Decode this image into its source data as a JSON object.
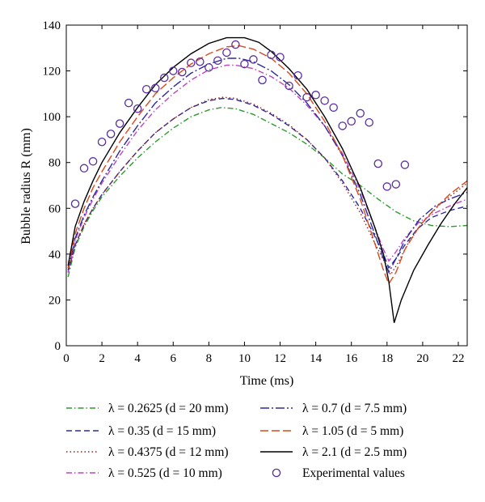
{
  "chart_data": {
    "type": "line",
    "xlabel": "Time (ms)",
    "ylabel": "Bubble radius R (mm)",
    "xlim": [
      0,
      22.5
    ],
    "ylim": [
      0,
      140
    ],
    "xticks": [
      0,
      2,
      4,
      6,
      8,
      10,
      12,
      14,
      16,
      18,
      20,
      22
    ],
    "yticks": [
      0,
      20,
      40,
      60,
      80,
      100,
      120,
      140
    ],
    "grid": false,
    "legend_position": "below",
    "series": [
      {
        "name": "λ = 0.2625 (d = 20 mm)",
        "color": "#2e9a2e",
        "dash": "dashdot",
        "points": [
          [
            0.1,
            30
          ],
          [
            0.5,
            43
          ],
          [
            1,
            52
          ],
          [
            1.5,
            59
          ],
          [
            2,
            65
          ],
          [
            3,
            74
          ],
          [
            4,
            82
          ],
          [
            5,
            89
          ],
          [
            6,
            95
          ],
          [
            7,
            100
          ],
          [
            8,
            103
          ],
          [
            8.7,
            104
          ],
          [
            9.5,
            103.5
          ],
          [
            10.5,
            101
          ],
          [
            11.5,
            97
          ],
          [
            12.5,
            93
          ],
          [
            13.5,
            88
          ],
          [
            14.5,
            82
          ],
          [
            15.5,
            75
          ],
          [
            16.5,
            70
          ],
          [
            17.5,
            64
          ],
          [
            18.5,
            58.5
          ],
          [
            19.5,
            54.5
          ],
          [
            20.5,
            52.5
          ],
          [
            21.5,
            52
          ],
          [
            22.5,
            52.5
          ]
        ]
      },
      {
        "name": "λ = 0.35 (d = 15 mm)",
        "color": "#2b2b9e",
        "dash": "dash",
        "points": [
          [
            0.1,
            32
          ],
          [
            0.5,
            44
          ],
          [
            1,
            53
          ],
          [
            1.5,
            60
          ],
          [
            2,
            66
          ],
          [
            3,
            76
          ],
          [
            4,
            85
          ],
          [
            5,
            93
          ],
          [
            6,
            99
          ],
          [
            7,
            104
          ],
          [
            8,
            107
          ],
          [
            8.8,
            108
          ],
          [
            9.5,
            107.5
          ],
          [
            10.5,
            105
          ],
          [
            11.5,
            101
          ],
          [
            12.5,
            96
          ],
          [
            13.5,
            90
          ],
          [
            14.5,
            82
          ],
          [
            15.5,
            72
          ],
          [
            16.5,
            60
          ],
          [
            17.3,
            48
          ],
          [
            17.8,
            40
          ],
          [
            18.1,
            34
          ],
          [
            18.5,
            38
          ],
          [
            19,
            44
          ],
          [
            19.7,
            51
          ],
          [
            20.5,
            56
          ],
          [
            21.5,
            59
          ],
          [
            22.5,
            61
          ]
        ]
      },
      {
        "name": "λ = 0.4375 (d = 12 mm)",
        "color": "#9a2222",
        "dash": "dot",
        "points": [
          [
            0.1,
            32
          ],
          [
            0.5,
            44
          ],
          [
            1,
            53
          ],
          [
            1.5,
            60
          ],
          [
            2,
            66
          ],
          [
            3,
            76
          ],
          [
            4,
            85
          ],
          [
            5,
            93
          ],
          [
            6,
            99
          ],
          [
            7,
            104
          ],
          [
            8,
            107.5
          ],
          [
            8.8,
            108.5
          ],
          [
            9.5,
            108
          ],
          [
            10.5,
            105.5
          ],
          [
            11.5,
            101.5
          ],
          [
            12.5,
            96.5
          ],
          [
            13.5,
            90
          ],
          [
            14.5,
            82
          ],
          [
            15.5,
            71
          ],
          [
            16.5,
            58
          ],
          [
            17.3,
            45
          ],
          [
            17.9,
            36
          ],
          [
            18.2,
            31
          ],
          [
            18.6,
            36
          ],
          [
            19.2,
            45
          ],
          [
            20,
            54
          ],
          [
            21,
            62
          ],
          [
            22,
            68
          ],
          [
            22.5,
            71
          ]
        ]
      },
      {
        "name": "λ = 0.525 (d = 10 mm)",
        "color": "#c044c0",
        "dash": "dashdot",
        "points": [
          [
            0.1,
            32
          ],
          [
            0.5,
            46
          ],
          [
            1,
            56
          ],
          [
            1.5,
            64
          ],
          [
            2,
            71
          ],
          [
            3,
            83
          ],
          [
            4,
            94
          ],
          [
            5,
            103
          ],
          [
            6,
            110
          ],
          [
            7,
            116
          ],
          [
            8,
            120.5
          ],
          [
            9,
            122.5
          ],
          [
            9.5,
            122.5
          ],
          [
            10.5,
            121
          ],
          [
            11.5,
            117.5
          ],
          [
            12.5,
            112.5
          ],
          [
            13.5,
            105
          ],
          [
            14.5,
            96
          ],
          [
            15.5,
            84
          ],
          [
            16.5,
            68
          ],
          [
            17.3,
            52
          ],
          [
            17.8,
            42
          ],
          [
            18.1,
            37
          ],
          [
            18.5,
            41
          ],
          [
            19,
            47
          ],
          [
            19.8,
            54
          ],
          [
            20.7,
            58
          ],
          [
            21.5,
            61
          ],
          [
            22.5,
            64
          ]
        ]
      },
      {
        "name": "λ = 0.7 (d = 7.5 mm)",
        "color": "#2b2b9e",
        "dash": "longdashdot",
        "points": [
          [
            0.1,
            33
          ],
          [
            0.5,
            47
          ],
          [
            1,
            57
          ],
          [
            1.5,
            65
          ],
          [
            2,
            72
          ],
          [
            3,
            85
          ],
          [
            4,
            96
          ],
          [
            5,
            106
          ],
          [
            6,
            113
          ],
          [
            7,
            119
          ],
          [
            8,
            123
          ],
          [
            9,
            125.5
          ],
          [
            9.7,
            125.5
          ],
          [
            10.5,
            124
          ],
          [
            11.5,
            120
          ],
          [
            12.5,
            114
          ],
          [
            13.5,
            106
          ],
          [
            14.5,
            96
          ],
          [
            15.5,
            83
          ],
          [
            16.5,
            66
          ],
          [
            17.3,
            49
          ],
          [
            17.8,
            38
          ],
          [
            18.1,
            32
          ],
          [
            18.5,
            38
          ],
          [
            19,
            46
          ],
          [
            19.8,
            55
          ],
          [
            20.7,
            61
          ],
          [
            21.5,
            64
          ],
          [
            22.5,
            67
          ]
        ]
      },
      {
        "name": "λ = 1.05 (d = 5 mm)",
        "color": "#d84a1b",
        "dash": "longdash",
        "points": [
          [
            0.1,
            34
          ],
          [
            0.5,
            49
          ],
          [
            1,
            60
          ],
          [
            1.5,
            69
          ],
          [
            2,
            76
          ],
          [
            3,
            89
          ],
          [
            4,
            100
          ],
          [
            5,
            110
          ],
          [
            6,
            117
          ],
          [
            7,
            123
          ],
          [
            8,
            127.5
          ],
          [
            9,
            130.5
          ],
          [
            9.7,
            131
          ],
          [
            10.5,
            129.5
          ],
          [
            11.5,
            125.5
          ],
          [
            12.5,
            119
          ],
          [
            13.5,
            110
          ],
          [
            14.5,
            98
          ],
          [
            15.5,
            83
          ],
          [
            16.5,
            64
          ],
          [
            17.3,
            45
          ],
          [
            17.8,
            33
          ],
          [
            18.1,
            27
          ],
          [
            18.5,
            32
          ],
          [
            19,
            42
          ],
          [
            19.8,
            52
          ],
          [
            20.7,
            60
          ],
          [
            21.5,
            66
          ],
          [
            22.5,
            72
          ]
        ]
      },
      {
        "name": "λ = 2.1 (d = 2.5 mm)",
        "color": "#000000",
        "dash": "solid",
        "points": [
          [
            0.1,
            35
          ],
          [
            0.5,
            52
          ],
          [
            1,
            63
          ],
          [
            1.5,
            72
          ],
          [
            2,
            80
          ],
          [
            3,
            93
          ],
          [
            4,
            104
          ],
          [
            5,
            114
          ],
          [
            6,
            121.5
          ],
          [
            7,
            127.5
          ],
          [
            8,
            132
          ],
          [
            9,
            134.5
          ],
          [
            10,
            134.5
          ],
          [
            10.8,
            132.5
          ],
          [
            11.5,
            128.5
          ],
          [
            12.5,
            121
          ],
          [
            13.5,
            112
          ],
          [
            14.5,
            100
          ],
          [
            15.5,
            86
          ],
          [
            16.5,
            69
          ],
          [
            17.3,
            52
          ],
          [
            17.8,
            40
          ],
          [
            18.1,
            28
          ],
          [
            18.4,
            10
          ],
          [
            18.8,
            20
          ],
          [
            19.5,
            33
          ],
          [
            20.3,
            44
          ],
          [
            21,
            53
          ],
          [
            21.8,
            62
          ],
          [
            22.5,
            69
          ]
        ]
      }
    ],
    "experimental": {
      "name": "Experimental values",
      "color": "#5a2ca0",
      "points": [
        [
          0.5,
          62
        ],
        [
          1,
          77.5
        ],
        [
          1.5,
          80.5
        ],
        [
          2,
          89
        ],
        [
          2.5,
          92.5
        ],
        [
          3,
          97
        ],
        [
          3.5,
          106
        ],
        [
          4,
          103.5
        ],
        [
          4.5,
          112
        ],
        [
          5,
          112.5
        ],
        [
          5.5,
          117
        ],
        [
          6,
          120
        ],
        [
          6.5,
          119.5
        ],
        [
          7,
          123.5
        ],
        [
          7.5,
          124
        ],
        [
          8,
          121.5
        ],
        [
          8.5,
          124.5
        ],
        [
          9,
          128
        ],
        [
          9.5,
          131.5
        ],
        [
          10,
          123
        ],
        [
          10.5,
          125
        ],
        [
          11,
          116
        ],
        [
          11.5,
          127
        ],
        [
          12,
          126
        ],
        [
          12.5,
          113.5
        ],
        [
          13,
          118
        ],
        [
          13.5,
          108.5
        ],
        [
          14,
          109.5
        ],
        [
          14.5,
          107
        ],
        [
          15,
          104
        ],
        [
          15.5,
          96
        ],
        [
          16,
          98
        ],
        [
          16.5,
          101.5
        ],
        [
          17,
          97.5
        ],
        [
          17.5,
          79.5
        ],
        [
          18,
          69.5
        ],
        [
          18.5,
          70.5
        ],
        [
          19,
          79
        ]
      ]
    }
  }
}
